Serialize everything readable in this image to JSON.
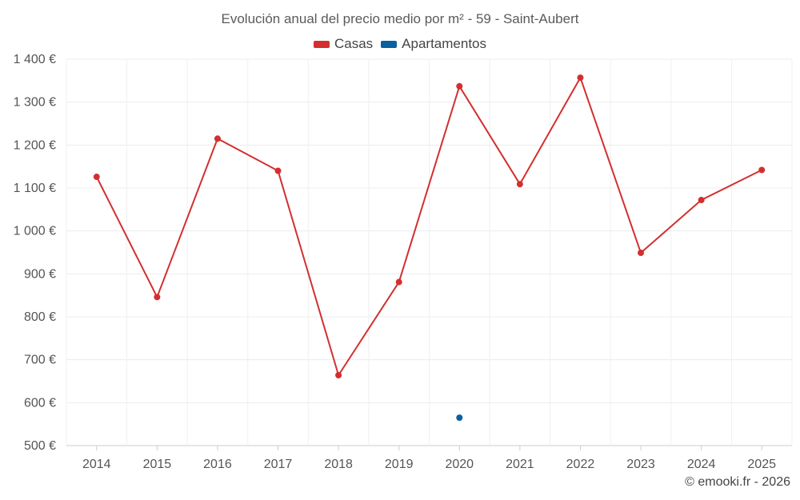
{
  "chart_data": {
    "type": "line",
    "title": "Evolución anual del precio medio por m² - 59 - Saint-Aubert",
    "categories": [
      "2014",
      "2015",
      "2016",
      "2017",
      "2018",
      "2019",
      "2020",
      "2021",
      "2022",
      "2023",
      "2024",
      "2025"
    ],
    "series": [
      {
        "name": "Casas",
        "color": "#d32f2f",
        "values": [
          1126,
          846,
          1215,
          1140,
          664,
          881,
          1337,
          1109,
          1357,
          949,
          1072,
          1142
        ]
      },
      {
        "name": "Apartamentos",
        "color": "#0a5f9e",
        "values": [
          null,
          null,
          null,
          null,
          null,
          null,
          565,
          null,
          null,
          null,
          null,
          null
        ]
      }
    ],
    "yticks": [
      "500 €",
      "600 €",
      "700 €",
      "800 €",
      "900 €",
      "1 000 €",
      "1 100 €",
      "1 200 €",
      "1 300 €",
      "1 400 €"
    ],
    "ylim": [
      500,
      1400
    ],
    "grid": true,
    "legend_position": "top-center"
  },
  "credit": "© emooki.fr - 2026"
}
